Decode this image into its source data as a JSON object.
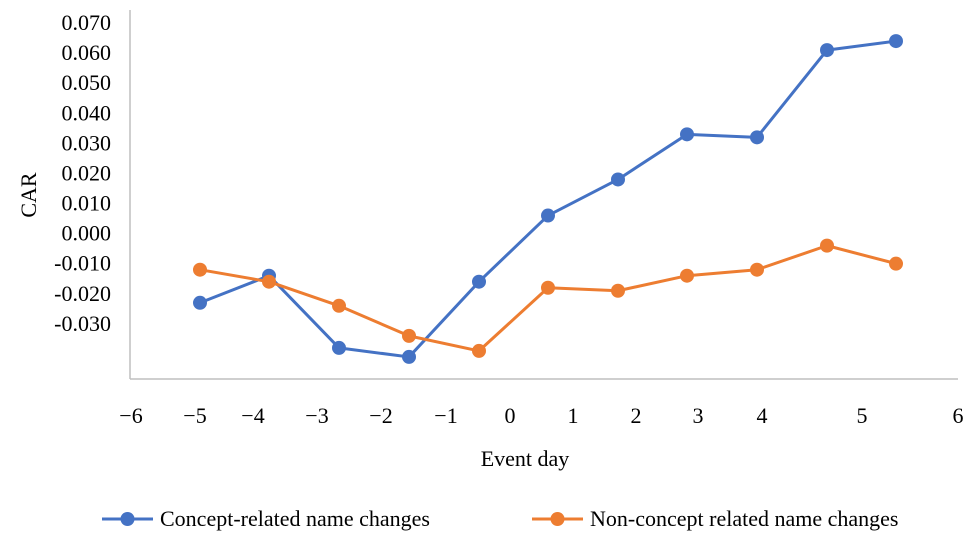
{
  "chart_data": {
    "type": "line",
    "xlabel": "Event day",
    "ylabel": "CAR",
    "x_tick_labels": [
      "−6",
      "−5",
      "−4",
      "−3",
      "−2",
      "−1",
      "0",
      "1",
      "2",
      "3",
      "4",
      "5",
      "6"
    ],
    "y_tick_labels": [
      "0.070",
      "0.060",
      "0.050",
      "0.040",
      "0.030",
      "0.020",
      "0.010",
      "0.000",
      "-0.010",
      "-0.020",
      "-0.030"
    ],
    "y_ticks": [
      0.07,
      0.06,
      0.05,
      0.04,
      0.03,
      0.02,
      0.01,
      0.0,
      -0.01,
      -0.02,
      -0.03
    ],
    "ylim": [
      -0.049,
      0.072
    ],
    "x": [
      -5,
      -4,
      -3,
      -2,
      -1,
      1,
      2,
      3,
      4,
      5,
      6
    ],
    "grid": false,
    "legend_position": "bottom",
    "series": [
      {
        "name": "Concept-related name changes",
        "color": "#4472C4",
        "values": [
          -0.023,
          -0.014,
          -0.038,
          -0.041,
          -0.016,
          0.006,
          0.018,
          0.033,
          0.032,
          0.061,
          0.064
        ]
      },
      {
        "name": "Non-concept related name changes",
        "color": "#ED7D31",
        "values": [
          -0.012,
          -0.016,
          -0.024,
          -0.034,
          -0.039,
          -0.018,
          -0.019,
          -0.014,
          -0.012,
          -0.004,
          -0.01
        ]
      }
    ]
  }
}
